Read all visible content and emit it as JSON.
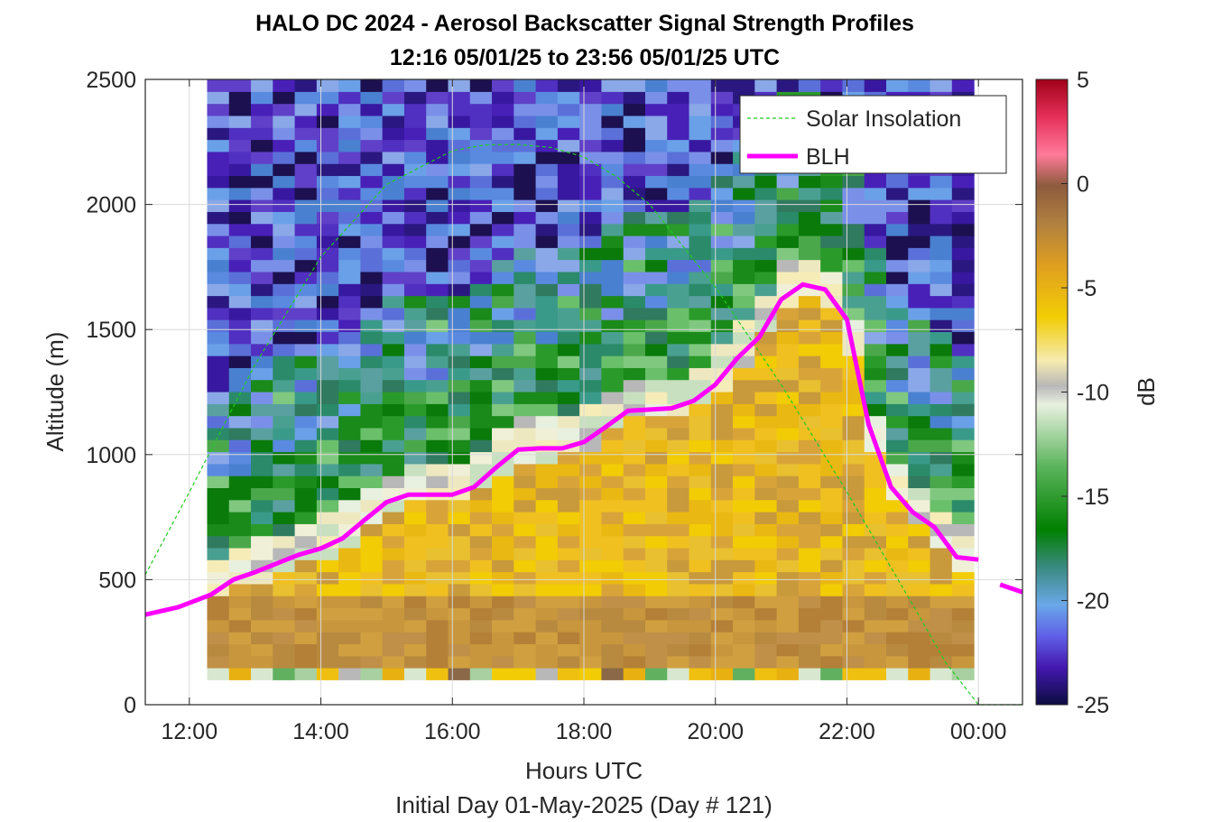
{
  "chart_data": {
    "type": "heatmap",
    "title": "HALO DC 2024 - Aerosol Backscatter Signal Strength Profiles",
    "subtitle": "12:16 05/01/25 to 23:56 05/01/25  UTC",
    "xlabel": "Hours UTC",
    "xlabel2": "Initial Day 01-May-2025 (Day # 121)",
    "ylabel": "Altitude (m)",
    "xlim": [
      11.33,
      24.67
    ],
    "ylim": [
      0,
      2500
    ],
    "xticks": [
      12,
      14,
      16,
      18,
      20,
      22,
      24
    ],
    "xtick_labels": [
      "12:00",
      "14:00",
      "16:00",
      "18:00",
      "20:00",
      "22:00",
      "00:00"
    ],
    "yticks": [
      0,
      500,
      1000,
      1500,
      2000,
      2500
    ],
    "ytick_labels": [
      "0",
      "500",
      "1000",
      "1500",
      "2000",
      "2500"
    ],
    "grid": true,
    "legend_position": "top-right",
    "colorbar": {
      "label": "dB",
      "range": [
        -25,
        5
      ],
      "ticks": [
        5,
        0,
        -5,
        -10,
        -15,
        -20,
        -25
      ],
      "tick_labels": [
        "5",
        "0",
        "-5",
        "-10",
        "-15",
        "-20",
        "-25"
      ]
    },
    "heatmap_x_range_hours": [
      12.27,
      23.93
    ],
    "heatmap_y_range_m": [
      100,
      2500
    ],
    "series": [
      {
        "name": "Solar Insolation",
        "style": "dashed",
        "color": "#22cc22",
        "x": [
          11.33,
          12.0,
          13.0,
          14.0,
          15.0,
          16.0,
          16.5,
          17.0,
          17.5,
          18.0,
          18.5,
          19.0,
          20.0,
          21.0,
          22.0,
          23.0,
          23.5,
          24.0,
          24.67
        ],
        "y": [
          520,
          850,
          1360,
          1790,
          2080,
          2215,
          2238,
          2240,
          2228,
          2190,
          2110,
          2000,
          1670,
          1280,
          850,
          400,
          170,
          0,
          0
        ]
      },
      {
        "name": "BLH",
        "style": "solid",
        "color": "#ff00ff",
        "x": [
          11.33,
          11.83,
          12.33,
          12.67,
          13.0,
          13.33,
          13.67,
          14.0,
          14.33,
          14.67,
          15.0,
          15.33,
          15.67,
          16.0,
          16.33,
          16.67,
          17.0,
          17.33,
          17.67,
          18.0,
          18.33,
          18.67,
          19.0,
          19.33,
          19.67,
          20.0,
          20.33,
          20.67,
          21.0,
          21.33,
          21.67,
          22.0,
          22.33,
          22.67,
          23.0,
          23.33,
          23.67,
          24.0
        ],
        "y": [
          360,
          390,
          440,
          500,
          530,
          565,
          600,
          625,
          665,
          740,
          810,
          840,
          840,
          840,
          870,
          950,
          1020,
          1025,
          1025,
          1050,
          1110,
          1175,
          1180,
          1185,
          1215,
          1280,
          1385,
          1470,
          1620,
          1680,
          1660,
          1540,
          1120,
          870,
          770,
          710,
          590,
          580
        ],
        "x2": [
          24.33,
          24.67
        ],
        "y2": [
          480,
          450
        ]
      }
    ]
  }
}
